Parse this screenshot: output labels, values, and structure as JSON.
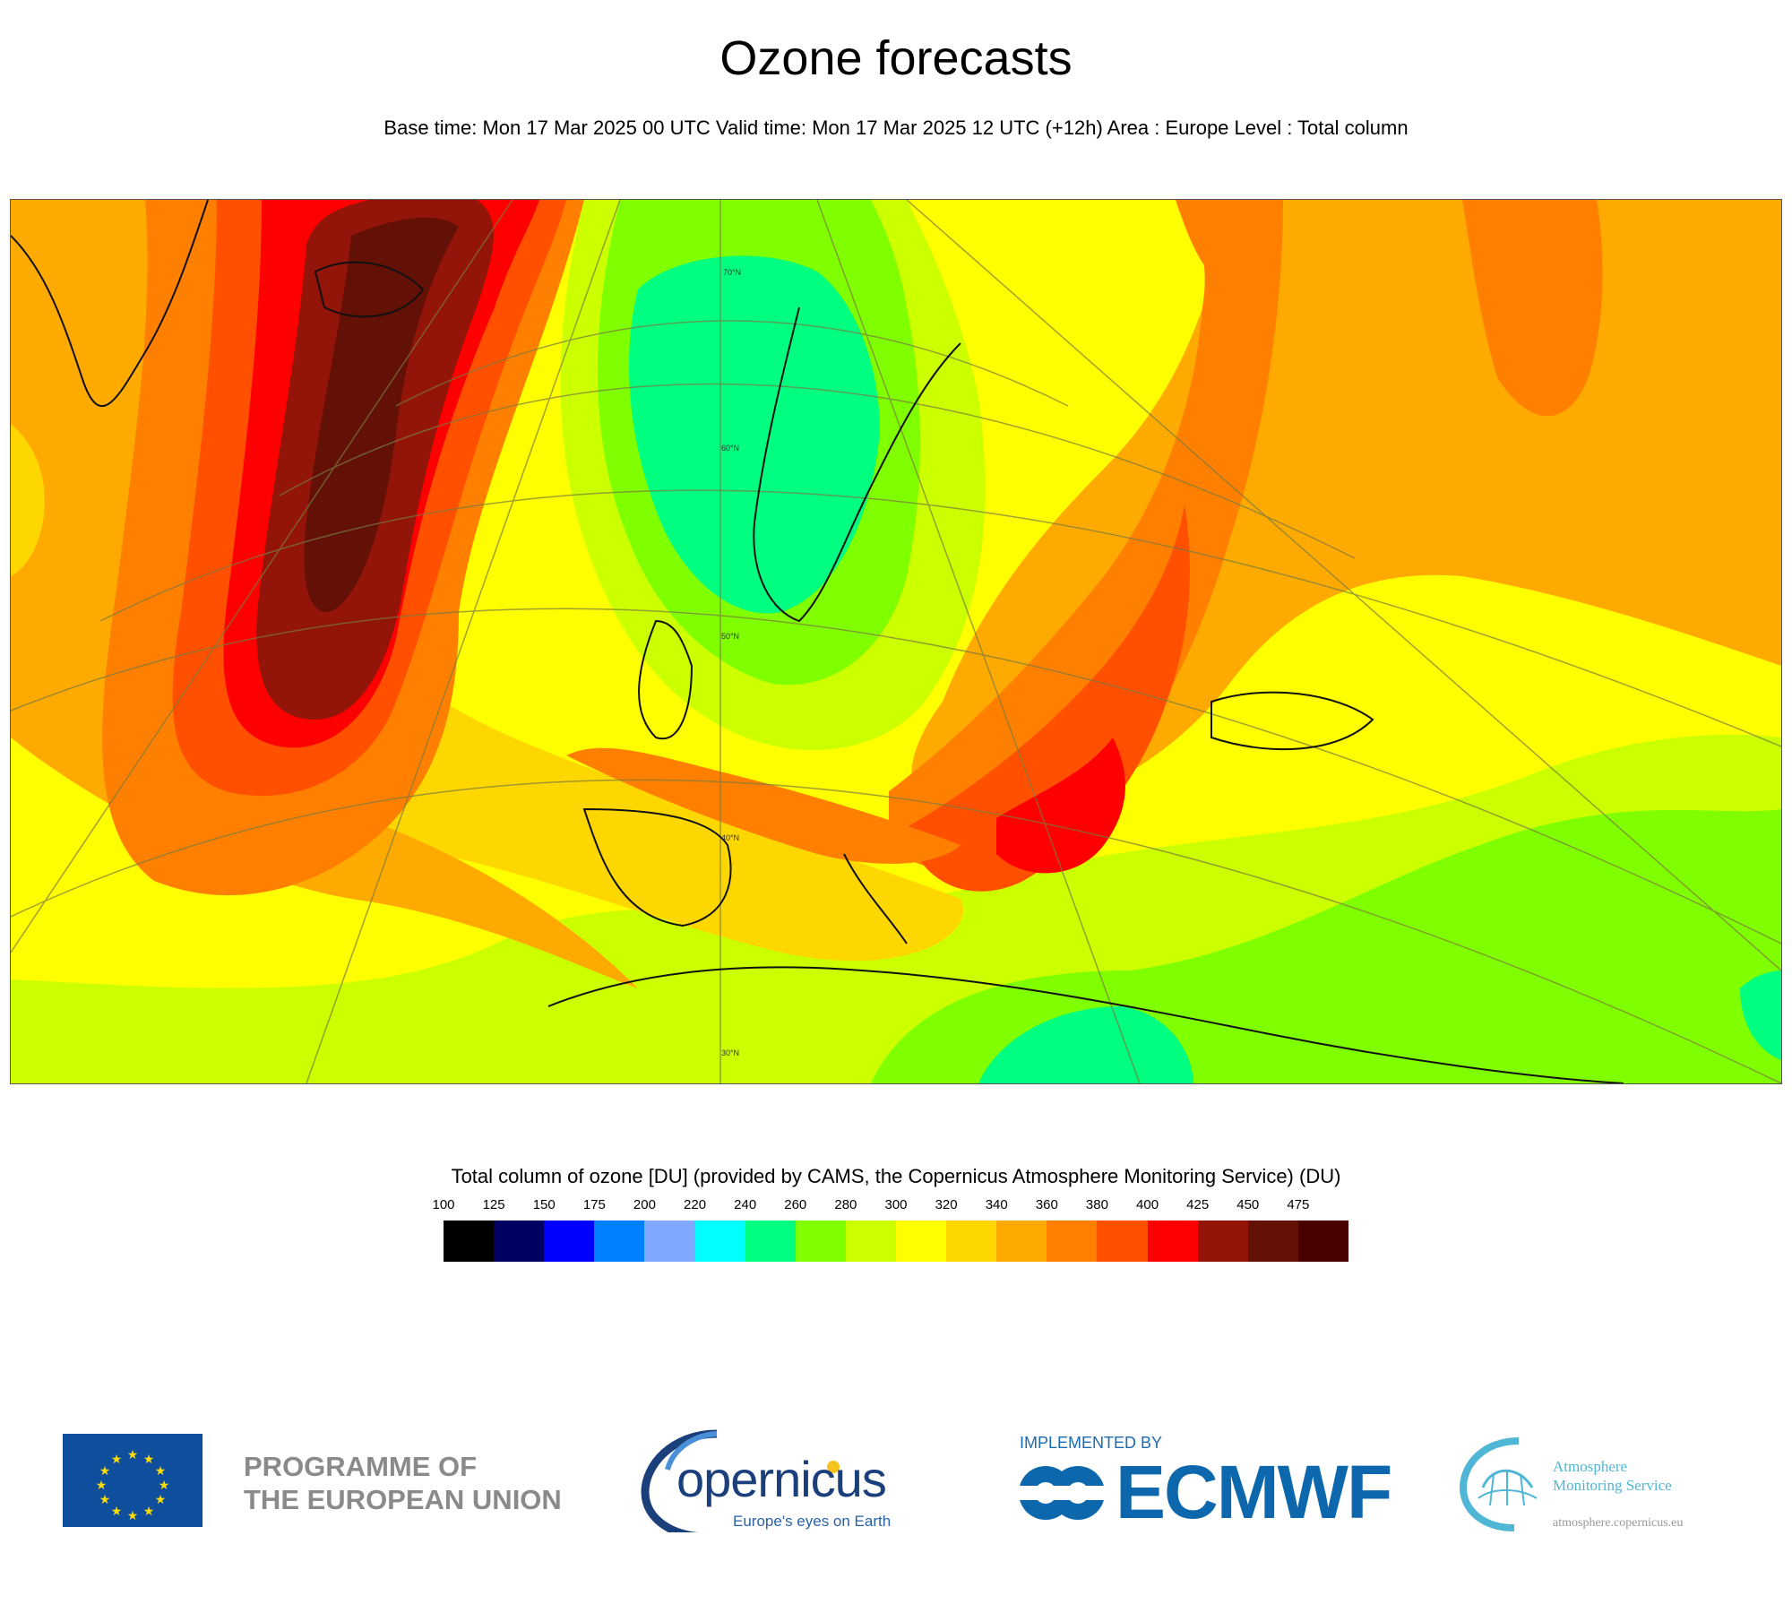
{
  "header": {
    "title": "Ozone forecasts",
    "subtitle": "Base time: Mon 17 Mar 2025 00 UTC Valid time: Mon 17 Mar 2025 12 UTC (+12h) Area : Europe Level : Total column"
  },
  "map": {
    "latitude_labels": [
      "70°N",
      "60°N",
      "50°N",
      "40°N",
      "30°N"
    ]
  },
  "legend": {
    "title": "Total column of ozone [DU] (provided by CAMS, the Copernicus Atmosphere Monitoring Service) (DU)",
    "ticks": [
      "100",
      "125",
      "150",
      "175",
      "200",
      "220",
      "240",
      "260",
      "280",
      "300",
      "320",
      "340",
      "360",
      "380",
      "400",
      "425",
      "450",
      "475"
    ],
    "colors": [
      "#000000",
      "#000060",
      "#0000ff",
      "#0080ff",
      "#80a8ff",
      "#00ffff",
      "#00ff80",
      "#80ff00",
      "#ccff00",
      "#ffff00",
      "#ffd700",
      "#ffaa00",
      "#ff8000",
      "#ff5000",
      "#ff0000",
      "#931409",
      "#631006",
      "#4a0000"
    ]
  },
  "footer": {
    "eu_line1": "PROGRAMME OF",
    "eu_line2": "THE EUROPEAN UNION",
    "copernicus_word": "opernicus",
    "copernicus_tagline": "Europe's eyes on Earth",
    "ecmwf_implemented": "IMPLEMENTED BY",
    "ecmwf_word": "ECMWF",
    "ams_line1": "Atmosphere",
    "ams_line2": "Monitoring Service",
    "ams_url": "atmosphere.copernicus.eu"
  }
}
